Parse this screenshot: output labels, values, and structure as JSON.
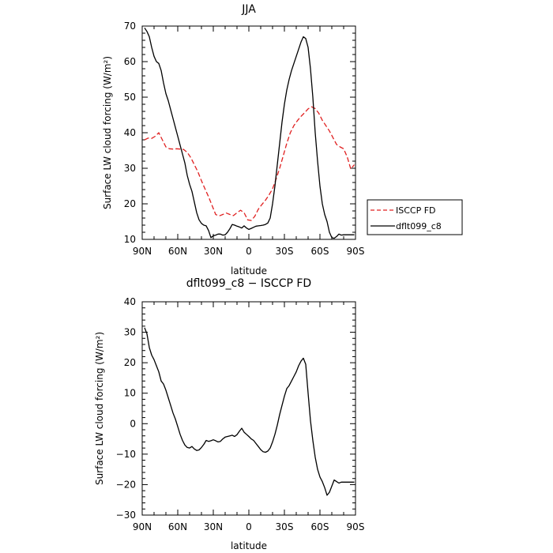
{
  "chart_data": [
    {
      "type": "line",
      "title": "JJA",
      "xlabel": "latitude",
      "ylabel": "Surface LW cloud forcing (W/m²)",
      "xlim": [
        90,
        -90
      ],
      "ylim": [
        10,
        70
      ],
      "xticks": [
        90,
        60,
        30,
        0,
        -30,
        -60,
        -90
      ],
      "xticklabels": [
        "90N",
        "60N",
        "30N",
        "0",
        "30S",
        "60S",
        "90S"
      ],
      "yticks": [
        10,
        20,
        30,
        40,
        50,
        60,
        70
      ],
      "yticklabels": [
        "10",
        "20",
        "30",
        "40",
        "50",
        "60",
        "70"
      ],
      "legend": {
        "placement": "right-outside",
        "entries": [
          {
            "name": "ISCCP FD",
            "color": "#e02020",
            "dash": "dashed"
          },
          {
            "name": "dflt099_c8",
            "color": "#000000",
            "dash": "solid"
          }
        ]
      },
      "series": [
        {
          "name": "ISCCP FD",
          "color": "#e02020",
          "dash": "dashed",
          "x": [
            88,
            85,
            82,
            79,
            76,
            73,
            70,
            67,
            64,
            61,
            58,
            55,
            52,
            49,
            46,
            43,
            40,
            37,
            34,
            31,
            28,
            25,
            22,
            19,
            16,
            13,
            10,
            7,
            4,
            1,
            -2,
            -5,
            -8,
            -11,
            -14,
            -17,
            -20,
            -23,
            -26,
            -29,
            -32,
            -35,
            -38,
            -41,
            -44,
            -47,
            -50,
            -53,
            -56,
            -59,
            -62,
            -65,
            -68,
            -71,
            -74,
            -77,
            -80,
            -83,
            -86,
            -89
          ],
          "y": [
            38,
            38.5,
            38.4,
            39,
            40,
            38,
            36,
            35.5,
            35.4,
            35.5,
            35.4,
            35.3,
            34.5,
            33,
            31,
            29,
            26.5,
            24.2,
            22,
            19.5,
            17,
            16.6,
            17,
            17.4,
            17,
            16.7,
            17.5,
            18.2,
            17.5,
            15.5,
            15.3,
            16.5,
            18.5,
            19.8,
            21,
            22.5,
            24.2,
            27,
            30,
            33.5,
            37,
            40,
            42,
            43.4,
            44.6,
            45.6,
            46.7,
            47.3,
            46.8,
            45.5,
            43.5,
            42,
            40.5,
            38.6,
            36.7,
            36,
            35.5,
            33.2,
            29.8,
            31
          ]
        },
        {
          "name": "dflt099_c8",
          "color": "#000000",
          "dash": "solid",
          "x": [
            88,
            86,
            84,
            82,
            80,
            78,
            76,
            74,
            72,
            70,
            68,
            66,
            64,
            62,
            60,
            58,
            56,
            54,
            52,
            50,
            48,
            46,
            44,
            42,
            40,
            38,
            36,
            34,
            32,
            30,
            28,
            26,
            24,
            22,
            20,
            18,
            16,
            14,
            12,
            10,
            8,
            6,
            4,
            2,
            0,
            -2,
            -4,
            -6,
            -8,
            -10,
            -12,
            -14,
            -16,
            -18,
            -20,
            -22,
            -24,
            -26,
            -28,
            -30,
            -32,
            -34,
            -36,
            -38,
            -40,
            -42,
            -44,
            -46,
            -48,
            -50,
            -52,
            -54,
            -56,
            -58,
            -60,
            -62,
            -64,
            -66,
            -68,
            -70,
            -72,
            -74,
            -76,
            -78,
            -80,
            -82,
            -84,
            -86,
            -88,
            -89
          ],
          "y": [
            69.5,
            68.5,
            67,
            64,
            61.5,
            60,
            59.5,
            57.5,
            54,
            51,
            49,
            46.5,
            44,
            41.5,
            39,
            36.5,
            34,
            31.5,
            28,
            25.5,
            23.5,
            20.5,
            17.5,
            15.5,
            14.5,
            14,
            13.8,
            12.5,
            10.5,
            11,
            11.2,
            11.5,
            11.5,
            11.2,
            11.3,
            12,
            13,
            14.2,
            14,
            13.7,
            13.5,
            13.2,
            13.8,
            13.2,
            12.8,
            13.1,
            13.4,
            13.7,
            13.8,
            13.9,
            14,
            14.2,
            14.6,
            16,
            20,
            25,
            31,
            37,
            43,
            48,
            52,
            55,
            57.5,
            59.5,
            61.5,
            63.5,
            65.5,
            67,
            66.5,
            64,
            58,
            50,
            40,
            32,
            25,
            20,
            17,
            15,
            12,
            10.5,
            10.3,
            10.8,
            11.5,
            11.2,
            11.3,
            11.3,
            11.3,
            11.3,
            11.3,
            11.3
          ]
        }
      ]
    },
    {
      "type": "line",
      "title": "dflt099_c8 − ISCCP FD",
      "xlabel": "latitude",
      "ylabel": "Surface LW cloud forcing (W/m²)",
      "xlim": [
        90,
        -90
      ],
      "ylim": [
        -30,
        40
      ],
      "xticks": [
        90,
        60,
        30,
        0,
        -30,
        -60,
        -90
      ],
      "xticklabels": [
        "90N",
        "60N",
        "30N",
        "0",
        "30S",
        "60S",
        "90S"
      ],
      "yticks": [
        -30,
        -20,
        -10,
        0,
        10,
        20,
        30,
        40
      ],
      "yticklabels": [
        "−30",
        "−20",
        "−10",
        "0",
        "10",
        "20",
        "30",
        "40"
      ],
      "series": [
        {
          "color": "#000000",
          "dash": "solid",
          "x": [
            88,
            86,
            84,
            82,
            80,
            78,
            76,
            74,
            72,
            70,
            68,
            66,
            64,
            62,
            60,
            58,
            56,
            54,
            52,
            50,
            48,
            46,
            44,
            42,
            40,
            38,
            36,
            34,
            32,
            30,
            28,
            26,
            24,
            22,
            20,
            18,
            16,
            14,
            12,
            10,
            8,
            6,
            4,
            2,
            0,
            -2,
            -4,
            -6,
            -8,
            -10,
            -12,
            -14,
            -16,
            -18,
            -20,
            -22,
            -24,
            -26,
            -28,
            -30,
            -32,
            -34,
            -36,
            -38,
            -40,
            -42,
            -44,
            -46,
            -48,
            -50,
            -52,
            -54,
            -56,
            -58,
            -60,
            -62,
            -64,
            -66,
            -68,
            -70,
            -72,
            -74,
            -76,
            -78,
            -80,
            -82,
            -84,
            -86,
            -88,
            -89
          ],
          "y": [
            31.5,
            29.5,
            25,
            22.5,
            21,
            19,
            17,
            14,
            13,
            11,
            8.5,
            6,
            3.5,
            1.5,
            -1,
            -3.5,
            -5.5,
            -7,
            -7.8,
            -8,
            -7.5,
            -8.3,
            -8.8,
            -8.6,
            -7.8,
            -6.8,
            -5.5,
            -5.8,
            -5.6,
            -5.3,
            -5.6,
            -6,
            -5.8,
            -5,
            -4.4,
            -4.2,
            -4,
            -3.8,
            -4.2,
            -3.6,
            -2.5,
            -1.5,
            -2.8,
            -3.5,
            -4.2,
            -5,
            -5.5,
            -6.5,
            -7.5,
            -8.5,
            -9.2,
            -9.4,
            -9,
            -8,
            -6,
            -3.5,
            -0.5,
            3,
            6,
            9,
            11.5,
            12.5,
            14,
            15.5,
            17,
            19,
            20.5,
            21.5,
            19.5,
            10,
            1,
            -5.5,
            -11,
            -15,
            -17.5,
            -19,
            -21,
            -23.5,
            -22.5,
            -20.5,
            -18.5,
            -19,
            -19.5,
            -19.2,
            -19.2,
            -19.2,
            -19.2,
            -19.2,
            -19.2,
            -19.2
          ]
        }
      ]
    }
  ]
}
